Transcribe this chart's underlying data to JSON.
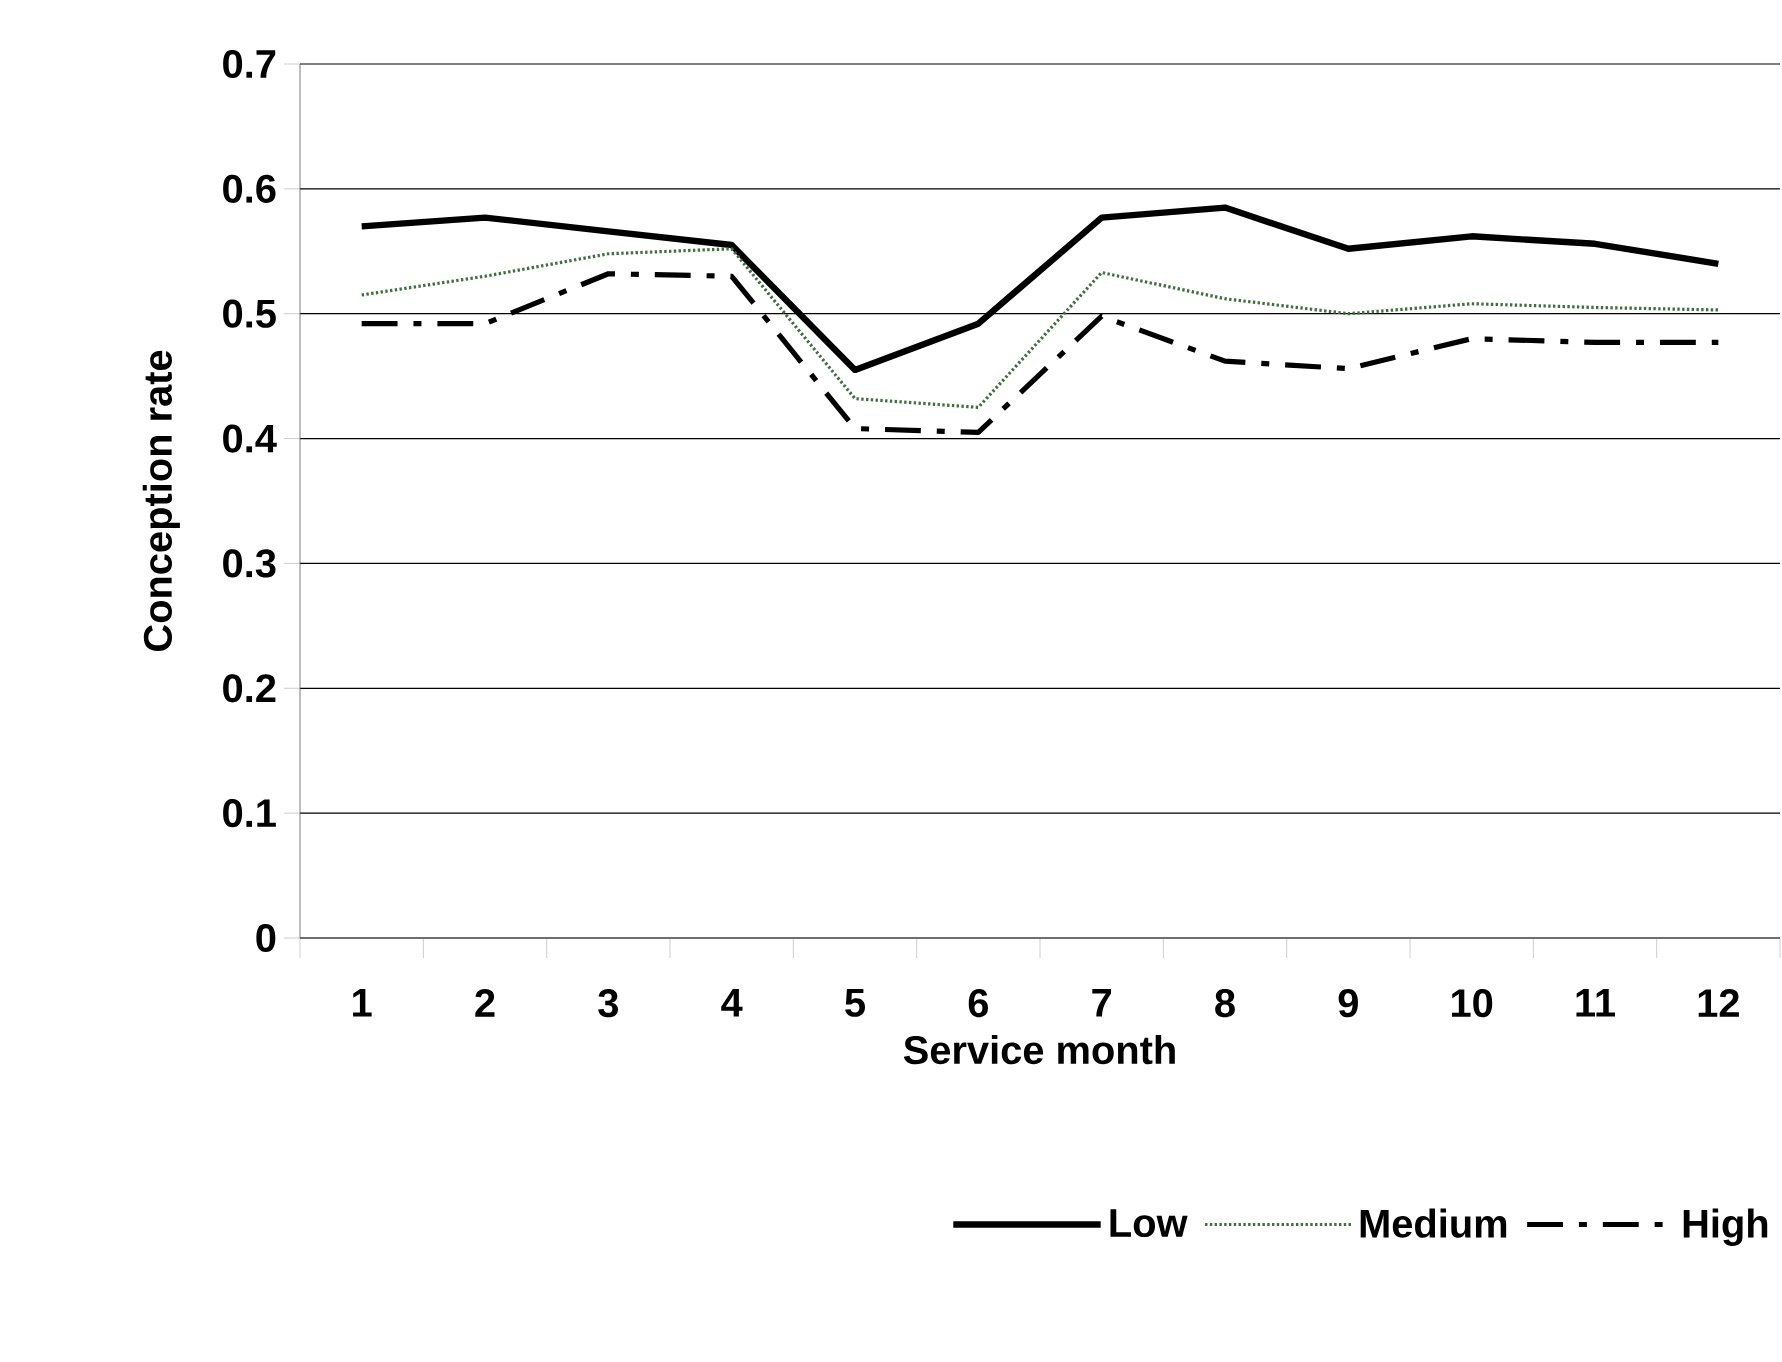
{
  "chart_data": {
    "type": "line",
    "xlabel": "Service month",
    "ylabel": "Conception rate",
    "categories": [
      "1",
      "2",
      "3",
      "4",
      "5",
      "6",
      "7",
      "8",
      "9",
      "10",
      "11",
      "12"
    ],
    "series": [
      {
        "name": "Low",
        "color": "#000000",
        "line_style": "solid",
        "values": [
          0.57,
          0.577,
          0.566,
          0.555,
          0.455,
          0.492,
          0.577,
          0.585,
          0.552,
          0.562,
          0.556,
          0.54
        ]
      },
      {
        "name": "Medium",
        "color": "#3f6e3f",
        "line_style": "dotted",
        "values": [
          0.515,
          0.53,
          0.548,
          0.552,
          0.432,
          0.425,
          0.533,
          0.512,
          0.5,
          0.508,
          0.505,
          0.503
        ]
      },
      {
        "name": "High",
        "color": "#000000",
        "line_style": "dashed",
        "values": [
          0.492,
          0.492,
          0.532,
          0.53,
          0.408,
          0.405,
          0.498,
          0.462,
          0.456,
          0.48,
          0.477,
          0.477
        ]
      }
    ],
    "ylim": [
      0,
      0.7
    ],
    "yticks": [
      0,
      0.1,
      0.2,
      0.3,
      0.4,
      0.5,
      0.6,
      0.7
    ],
    "grid": "y",
    "legend": "bottom right"
  }
}
